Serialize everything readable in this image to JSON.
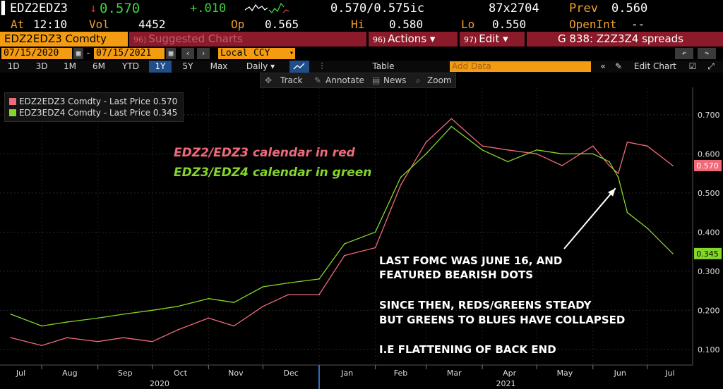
{
  "header": {
    "ticker": "EDZ2EDZ3",
    "change_arrow": "↓",
    "last": "0.570",
    "change": "+.010",
    "bid_ask": "0.570/0.575ic",
    "size": "87x2704",
    "prev_label": "Prev",
    "prev": "0.560",
    "at_label": "At",
    "time": "12:10",
    "vol_label": "Vol",
    "vol": "4452",
    "op_label": "Op",
    "op": "0.565",
    "hi_label": "Hi",
    "hi": "0.580",
    "lo_label": "Lo",
    "lo": "0.550",
    "openint_label": "OpenInt",
    "openint": "--"
  },
  "menu": {
    "security": "EDZ2EDZ3 Comdty",
    "suggested": "Suggested Charts",
    "suggested_num": "96)",
    "actions": "Actions ▾",
    "actions_num": "96)",
    "edit": "Edit ▾",
    "edit_num": "97)",
    "title": "G 838: Z2Z3Z4 spreads"
  },
  "dates": {
    "start": "07/15/2020",
    "end": "07/15/2021",
    "currency": "Local CCY"
  },
  "periods": [
    "1D",
    "3D",
    "1M",
    "6M",
    "YTD",
    "1Y",
    "5Y",
    "Max"
  ],
  "active_period": "1Y",
  "frequency": "Daily ▾",
  "table_label": "Table",
  "add_data_placeholder": "Add Data",
  "edit_chart": "Edit Chart",
  "toolbar": {
    "track": "Track",
    "annotate": "Annotate",
    "news": "News",
    "zoom": "Zoom"
  },
  "colors": {
    "red_series": "#f06a7a",
    "green_series": "#84d62a",
    "amber": "#f39c12"
  },
  "annotations": {
    "red_caption": "EDZ2/EDZ3 calendar in red",
    "green_caption": "EDZ3/EDZ4 calendar in green",
    "note_line1": "LAST FOMC WAS JUNE 16, AND",
    "note_line2": "FEATURED BEARISH DOTS",
    "note_line3": "SINCE THEN, REDS/GREENS STEADY",
    "note_line4": "BUT GREENS TO BLUES HAVE COLLAPSED",
    "note_line5": "I.E FLATTENING OF BACK END"
  },
  "chart_data": {
    "type": "line",
    "legend_position": "top-left",
    "ylim": [
      0.06,
      0.77
    ],
    "y_ticks": [
      "0.100",
      "0.200",
      "0.300",
      "0.400",
      "0.500",
      "0.600",
      "0.700"
    ],
    "x_ticks": [
      "Jul",
      "Aug",
      "Sep",
      "Oct",
      "Nov",
      "Dec",
      "Jan",
      "Feb",
      "Mar",
      "Apr",
      "May",
      "Jun",
      "Jul"
    ],
    "years": [
      "2020",
      "2021"
    ],
    "x": [
      "2020-07-15",
      "2020-08-01",
      "2020-08-15",
      "2020-09-01",
      "2020-09-15",
      "2020-10-01",
      "2020-10-15",
      "2020-11-01",
      "2020-11-15",
      "2020-12-01",
      "2020-12-15",
      "2021-01-01",
      "2021-01-15",
      "2021-02-01",
      "2021-02-15",
      "2021-03-01",
      "2021-03-15",
      "2021-04-01",
      "2021-04-15",
      "2021-05-01",
      "2021-05-15",
      "2021-06-01",
      "2021-06-10",
      "2021-06-15",
      "2021-06-20",
      "2021-07-01",
      "2021-07-15"
    ],
    "series": [
      {
        "name": "EDZ2EDZ3 Comdty - Last Price",
        "last": "0.570",
        "values": [
          0.13,
          0.11,
          0.13,
          0.12,
          0.13,
          0.12,
          0.15,
          0.18,
          0.16,
          0.21,
          0.24,
          0.24,
          0.34,
          0.36,
          0.52,
          0.63,
          0.69,
          0.62,
          0.61,
          0.6,
          0.57,
          0.62,
          0.57,
          0.55,
          0.63,
          0.62,
          0.57
        ]
      },
      {
        "name": "EDZ3EDZ4 Comdty - Last Price",
        "last": "0.345",
        "values": [
          0.19,
          0.16,
          0.17,
          0.18,
          0.19,
          0.2,
          0.21,
          0.23,
          0.22,
          0.26,
          0.27,
          0.28,
          0.37,
          0.4,
          0.54,
          0.6,
          0.67,
          0.61,
          0.58,
          0.61,
          0.6,
          0.6,
          0.58,
          0.54,
          0.45,
          0.41,
          0.345
        ]
      }
    ]
  }
}
